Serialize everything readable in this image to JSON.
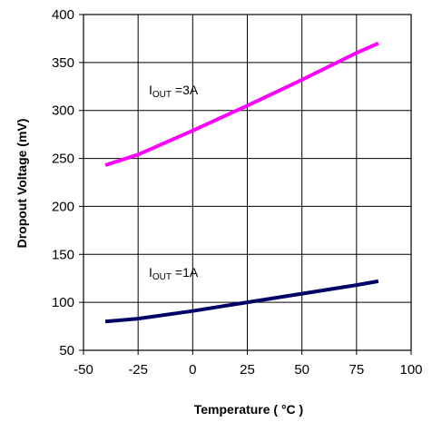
{
  "chart_data": {
    "type": "line",
    "xlabel": "Temperature ( °C )",
    "ylabel": "Dropout Voltage (mV)",
    "xlim": [
      -50,
      100
    ],
    "ylim": [
      50,
      400
    ],
    "xticks": [
      -50,
      -25,
      0,
      25,
      50,
      75,
      100
    ],
    "yticks": [
      50,
      100,
      150,
      200,
      250,
      300,
      350,
      400
    ],
    "xtick_labels": [
      "-50",
      "-25",
      "0",
      "25",
      "50",
      "75",
      "100"
    ],
    "ytick_labels": [
      "50",
      "100",
      "150",
      "200",
      "250",
      "300",
      "350",
      "400"
    ],
    "grid": true,
    "series": [
      {
        "label_main": "I",
        "label_sub": "OUT",
        "label_suffix": " =3A",
        "color": "#ff00ff",
        "x": [
          -40,
          -25,
          0,
          25,
          50,
          75,
          85
        ],
        "y": [
          243,
          254,
          279,
          305,
          332,
          360,
          370
        ]
      },
      {
        "label_main": "I",
        "label_sub": "OUT",
        "label_suffix": " =1A",
        "color": "#000066",
        "x": [
          -40,
          -25,
          0,
          25,
          50,
          75,
          85
        ],
        "y": [
          80,
          83,
          91,
          100,
          109,
          118,
          122
        ]
      }
    ]
  }
}
